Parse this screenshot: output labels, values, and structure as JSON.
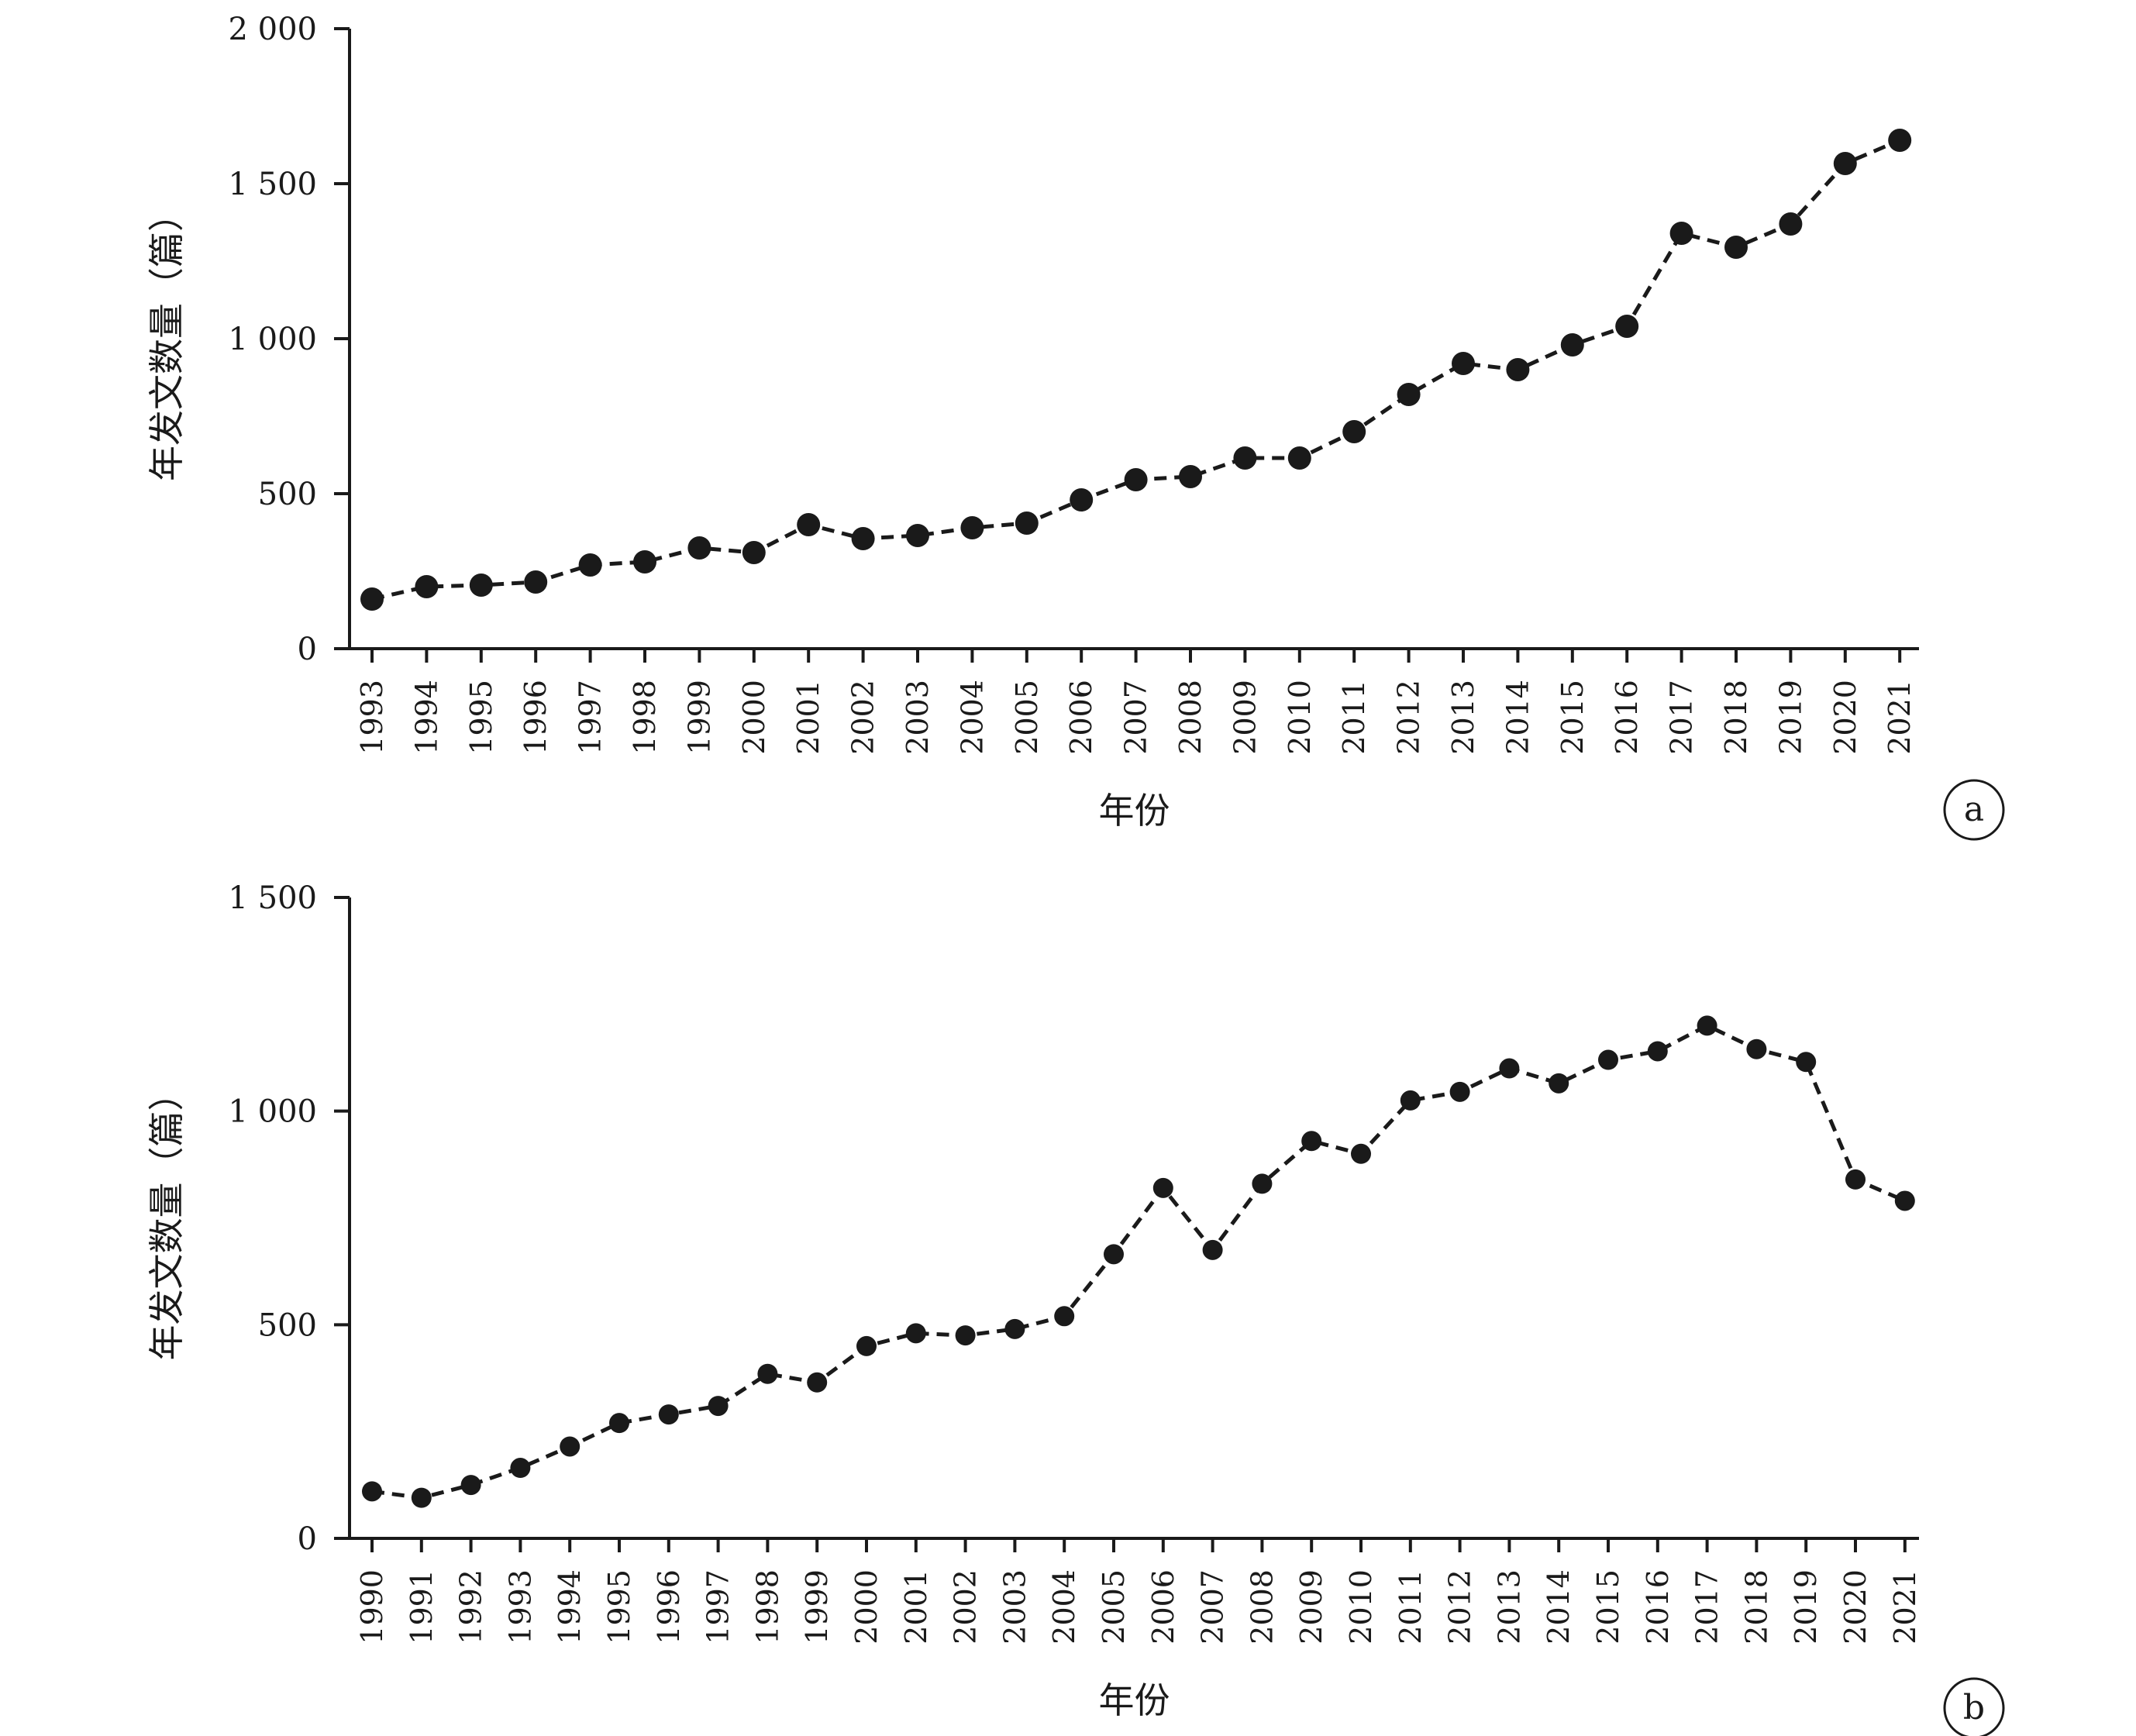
{
  "chart_data": [
    {
      "type": "line",
      "panel_label": "a",
      "xlabel": "年份",
      "ylabel": "年发文数量（篇）",
      "ylim": [
        0,
        2000
      ],
      "yticks": [
        0,
        500,
        1000,
        1500,
        2000
      ],
      "ytick_labels": [
        "0",
        "500",
        "1 000",
        "1 500",
        "2 000"
      ],
      "categories": [
        "1993",
        "1994",
        "1995",
        "1996",
        "1997",
        "1998",
        "1999",
        "2000",
        "2001",
        "2002",
        "2003",
        "2004",
        "2005",
        "2006",
        "2007",
        "2008",
        "2009",
        "2010",
        "2011",
        "2012",
        "2013",
        "2014",
        "2015",
        "2016",
        "2017",
        "2018",
        "2019",
        "2020",
        "2021"
      ],
      "values": [
        160,
        200,
        205,
        215,
        270,
        280,
        325,
        310,
        400,
        355,
        365,
        390,
        405,
        480,
        545,
        555,
        615,
        615,
        700,
        820,
        920,
        900,
        980,
        1040,
        1340,
        1295,
        1370,
        1565,
        1640
      ],
      "grid": false,
      "line_style": "dashed",
      "marker": "filled-circle",
      "color": "#1a1a1a"
    },
    {
      "type": "line",
      "panel_label": "b",
      "xlabel": "年份",
      "ylabel": "年发文数量（篇）",
      "ylim": [
        0,
        1500
      ],
      "yticks": [
        0,
        500,
        1000,
        1500
      ],
      "ytick_labels": [
        "0",
        "500",
        "1 000",
        "1 500"
      ],
      "categories": [
        "1990",
        "1991",
        "1992",
        "1993",
        "1994",
        "1995",
        "1996",
        "1997",
        "1998",
        "1999",
        "2000",
        "2001",
        "2002",
        "2003",
        "2004",
        "2005",
        "2006",
        "2007",
        "2008",
        "2009",
        "2010",
        "2011",
        "2012",
        "2013",
        "2014",
        "2015",
        "2016",
        "2017",
        "2018",
        "2019",
        "2020",
        "2021"
      ],
      "values": [
        110,
        95,
        125,
        165,
        215,
        270,
        290,
        310,
        385,
        365,
        450,
        480,
        475,
        490,
        520,
        665,
        820,
        675,
        830,
        930,
        900,
        1025,
        1045,
        1100,
        1065,
        1120,
        1140,
        1200,
        1145,
        1115,
        840,
        790
      ],
      "grid": false,
      "line_style": "dashed",
      "marker": "filled-circle",
      "color": "#1a1a1a"
    }
  ]
}
